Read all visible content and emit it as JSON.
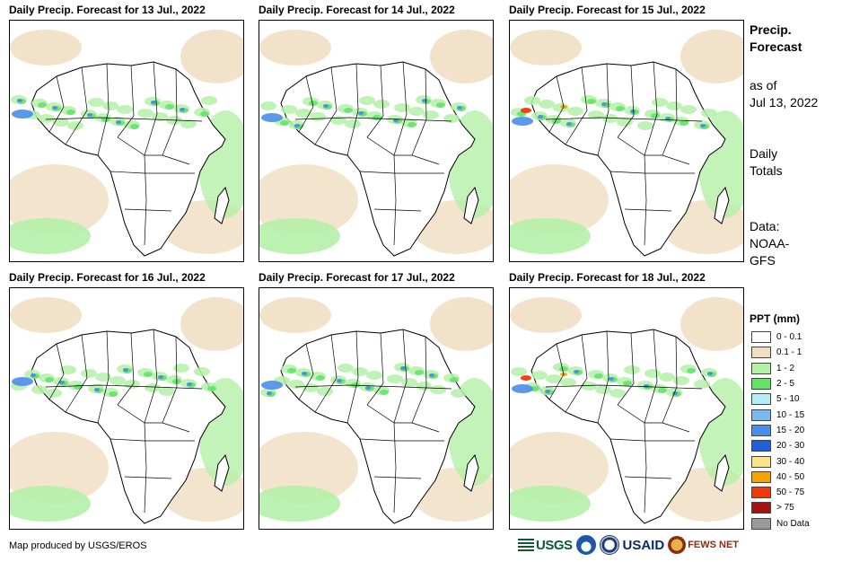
{
  "panels": [
    {
      "title": "Daily Precip. Forecast for 13 Jul., 2022"
    },
    {
      "title": "Daily Precip. Forecast for 14 Jul., 2022"
    },
    {
      "title": "Daily Precip. Forecast for 15 Jul., 2022"
    },
    {
      "title": "Daily Precip. Forecast for 16 Jul., 2022"
    },
    {
      "title": "Daily Precip. Forecast for 17 Jul., 2022"
    },
    {
      "title": "Daily Precip. Forecast for 18 Jul., 2022"
    }
  ],
  "sidebar": {
    "title_line1": "Precip.",
    "title_line2": "Forecast",
    "asof_line1": "as of",
    "asof_line2": "Jul 13, 2022",
    "daily_line1": "Daily",
    "daily_line2": "Totals",
    "data_line1": "Data:",
    "data_line2": "NOAA-",
    "data_line3": "GFS"
  },
  "legend": {
    "title": "PPT (mm)",
    "items": [
      {
        "label": "0 - 0.1",
        "color": "#ffffff"
      },
      {
        "label": "0.1 - 1",
        "color": "#f1dfc4"
      },
      {
        "label": "1 - 2",
        "color": "#b4f0a8"
      },
      {
        "label": "2 - 5",
        "color": "#63e36a"
      },
      {
        "label": "5 - 10",
        "color": "#b4eef5"
      },
      {
        "label": "10 - 15",
        "color": "#7ab8ef"
      },
      {
        "label": "15 - 20",
        "color": "#4a8ee8"
      },
      {
        "label": "20 - 30",
        "color": "#1f5fd8"
      },
      {
        "label": "30 - 40",
        "color": "#fbe48a"
      },
      {
        "label": "40 - 50",
        "color": "#f5a300"
      },
      {
        "label": "50 - 75",
        "color": "#ef3a0c"
      },
      {
        "label": "> 75",
        "color": "#a31313"
      },
      {
        "label": "No Data",
        "color": "#9a9a9a"
      }
    ]
  },
  "footer": {
    "credit": "Map produced by USGS/EROS",
    "logos": {
      "usgs": "USGS",
      "usaid": "USAID",
      "fews": "FEWS NET"
    }
  }
}
